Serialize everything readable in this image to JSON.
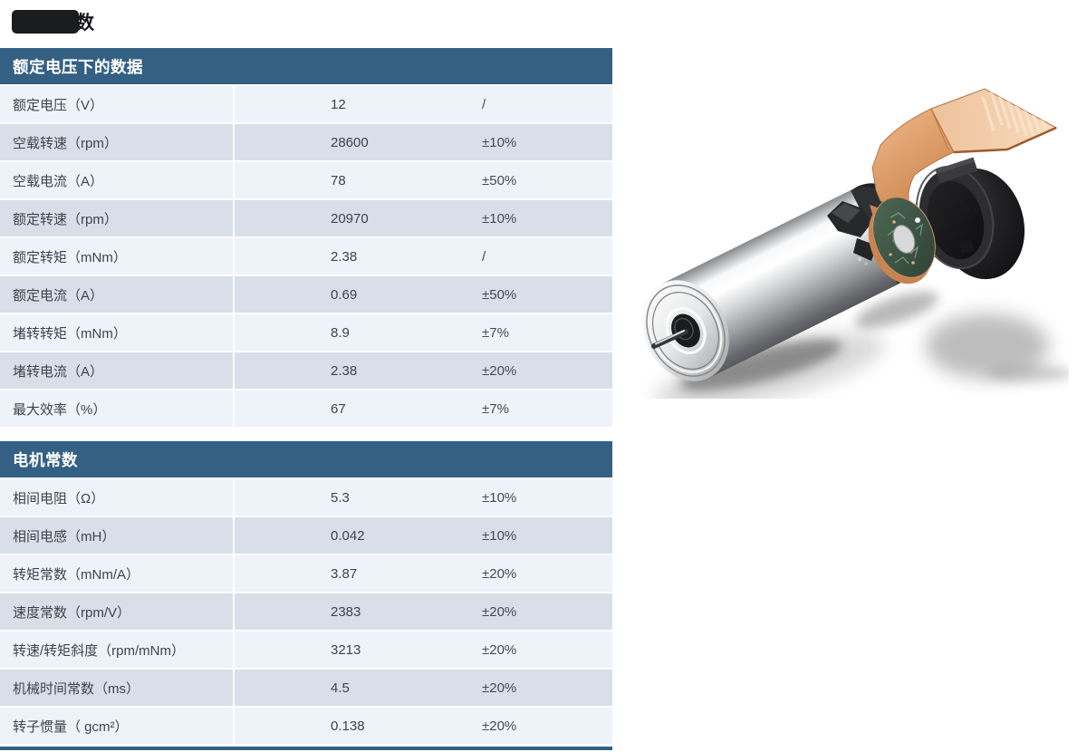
{
  "colors": {
    "accent": "#336083",
    "row_light": "#eef2f9",
    "row_dark": "#d9dfe8",
    "text": "#3d444c",
    "header_text": "#ffffff",
    "tag_box": "#1b1c1e",
    "copper": "#eec49e",
    "copper_dark": "#c97c44",
    "pcb_green": "#46604d",
    "metal_light": "#f8f9fa",
    "metal_dark": "#57595c",
    "cap_black": "#1a1a1c"
  },
  "tag": {
    "text": "数"
  },
  "tables": [
    {
      "title": "额定电压下的数据",
      "rows": [
        {
          "label": "额定电压（V）",
          "value": "12",
          "tolerance": "/"
        },
        {
          "label": "空载转速（rpm）",
          "value": "28600",
          "tolerance": "±10%"
        },
        {
          "label": "空载电流（A）",
          "value": "78",
          "tolerance": "±50%"
        },
        {
          "label": "额定转速（rpm）",
          "value": "20970",
          "tolerance": "±10%"
        },
        {
          "label": "额定转矩（mNm）",
          "value": "2.38",
          "tolerance": "/"
        },
        {
          "label": "额定电流（A）",
          "value": "0.69",
          "tolerance": "±50%"
        },
        {
          "label": "堵转转矩（mNm）",
          "value": "8.9",
          "tolerance": "±7%"
        },
        {
          "label": "堵转电流（A）",
          "value": "2.38",
          "tolerance": "±20%"
        },
        {
          "label": "最大效率（%）",
          "value": "67",
          "tolerance": "±7%"
        }
      ]
    },
    {
      "title": "电机常数",
      "rows": [
        {
          "label": "相间电阻（Ω）",
          "value": "5.3",
          "tolerance": "±10%"
        },
        {
          "label": "相间电感（mH）",
          "value": "0.042",
          "tolerance": "±10%"
        },
        {
          "label": "转矩常数（mNm/A）",
          "value": "3.87",
          "tolerance": "±20%"
        },
        {
          "label": "速度常数（rpm/V）",
          "value": "2383",
          "tolerance": "±20%"
        },
        {
          "label": "转速/转矩斜度（rpm/mNm）",
          "value": "3213",
          "tolerance": "±20%"
        },
        {
          "label": "机械时间常数（ms）",
          "value": "4.5",
          "tolerance": "±20%"
        },
        {
          "label": "转子惯量（ gcm²）",
          "value": "0.138",
          "tolerance": "±20%"
        }
      ]
    }
  ],
  "figure": {
    "name": "bldc-motor-exploded-view"
  }
}
